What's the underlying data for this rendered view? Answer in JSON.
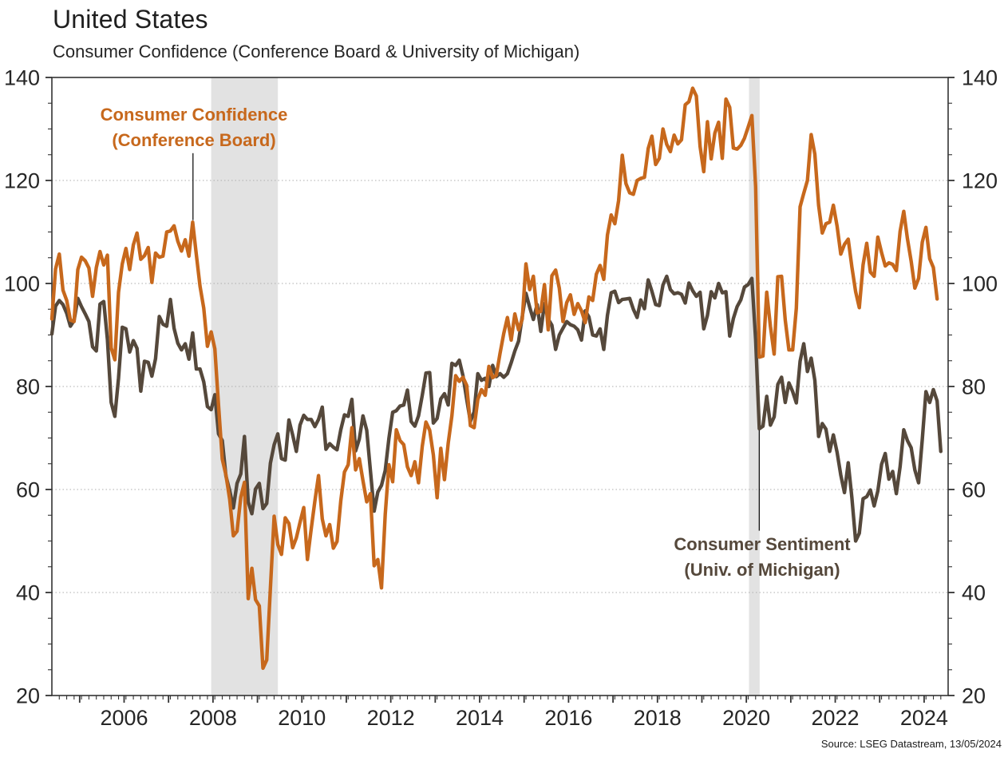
{
  "header": {
    "title": "United States",
    "subtitle": "Consumer Confidence (Conference Board & University of Michigan)"
  },
  "source": "Source: LSEG Datastream, 13/05/2024",
  "annotations": {
    "conference_board": {
      "line1": "Consumer Confidence",
      "line2": "(Conference Board)",
      "color": "#C7681C"
    },
    "michigan": {
      "line1": "Consumer Sentiment",
      "line2": "(Univ. of Michigan)",
      "color": "#55483B"
    }
  },
  "chart_data": {
    "type": "line",
    "title": "United States",
    "subtitle": "Consumer Confidence (Conference Board & University of Michigan)",
    "x_start": "2004-05",
    "interval": "monthly",
    "x_range_years": [
      2004.375,
      2024.54
    ],
    "ylim": [
      20,
      140
    ],
    "grid": "dotted horizontal at 40,60,80,100,120",
    "grid_values": [
      40,
      60,
      80,
      100,
      120
    ],
    "y_axis": {
      "major_ticks": [
        20,
        40,
        60,
        80,
        100,
        120,
        140
      ],
      "minor_step": 5,
      "labels_both_sides": true
    },
    "x_axis": {
      "labeled_years": [
        2006,
        2008,
        2010,
        2012,
        2014,
        2016,
        2018,
        2020,
        2022,
        2024
      ],
      "year_tick_start": 2005,
      "year_tick_end": 2024,
      "minor_tick_months": 2
    },
    "shaded_bands": [
      {
        "name": "recession-2008-09",
        "from": 2007.96,
        "to": 2009.46,
        "color": "#E2E2E2"
      },
      {
        "name": "covid-2020",
        "from": 2020.06,
        "to": 2020.3,
        "color": "#E2E2E2"
      }
    ],
    "callouts": [
      {
        "series": "conference_board",
        "x_year": 2007.55,
        "value_from": 125.3,
        "value_to": 112.3
      },
      {
        "series": "michigan",
        "x_year": 2020.29,
        "value_from": 71.5,
        "value_to": 52.0
      }
    ],
    "series": [
      {
        "name": "Consumer Confidence (Conference Board)",
        "color": "#C7681C",
        "values": [
          93.1,
          102.8,
          105.7,
          98.7,
          96.7,
          92.9,
          92.6,
          102.7,
          105.1,
          104.4,
          103.0,
          97.5,
          103.1,
          106.2,
          103.6,
          105.5,
          87.5,
          85.2,
          98.3,
          103.8,
          106.8,
          102.7,
          107.5,
          109.8,
          104.7,
          105.4,
          107.0,
          100.2,
          105.9,
          105.1,
          105.3,
          110.0,
          110.2,
          111.2,
          108.2,
          106.3,
          108.5,
          105.3,
          111.9,
          105.6,
          99.5,
          95.2,
          87.8,
          90.6,
          87.3,
          76.4,
          65.9,
          62.8,
          58.1,
          51.0,
          51.9,
          58.5,
          61.4,
          38.8,
          44.7,
          38.6,
          37.4,
          25.3,
          26.9,
          40.8,
          54.8,
          49.3,
          47.4,
          54.5,
          53.4,
          48.7,
          50.6,
          53.6,
          56.5,
          46.4,
          52.3,
          57.7,
          62.7,
          54.3,
          51.0,
          53.2,
          48.6,
          49.9,
          57.8,
          63.4,
          64.8,
          72.0,
          63.8,
          66.0,
          61.7,
          57.6,
          59.2,
          45.2,
          46.4,
          40.9,
          55.2,
          64.8,
          61.5,
          71.6,
          69.5,
          68.7,
          64.4,
          62.7,
          65.4,
          61.3,
          68.4,
          73.1,
          71.5,
          66.7,
          58.4,
          68.0,
          61.9,
          69.0,
          74.3,
          82.1,
          81.0,
          81.8,
          80.2,
          72.4,
          72.0,
          77.5,
          79.4,
          78.3,
          83.9,
          81.7,
          82.2,
          86.4,
          90.3,
          93.4,
          89.0,
          94.1,
          91.0,
          93.1,
          103.8,
          98.8,
          101.4,
          94.3,
          94.6,
          99.8,
          91.0,
          101.5,
          102.6,
          99.1,
          92.6,
          96.3,
          97.8,
          94.0,
          96.1,
          94.7,
          92.4,
          97.4,
          96.7,
          101.8,
          103.5,
          100.8,
          109.4,
          113.3,
          111.6,
          116.1,
          124.9,
          119.4,
          117.6,
          117.3,
          120.0,
          120.4,
          120.6,
          126.2,
          128.6,
          123.1,
          124.3,
          130.0,
          127.0,
          125.6,
          128.8,
          127.1,
          127.9,
          134.7,
          135.3,
          137.9,
          136.4,
          126.6,
          121.7,
          131.4,
          124.2,
          129.2,
          131.3,
          124.3,
          135.8,
          134.2,
          126.3,
          126.1,
          126.8,
          128.2,
          130.4,
          132.6,
          118.8,
          85.7,
          85.9,
          98.3,
          91.7,
          86.3,
          101.3,
          101.4,
          92.9,
          87.1,
          87.1,
          95.2,
          114.9,
          117.5,
          120.0,
          128.9,
          125.1,
          115.2,
          109.8,
          111.6,
          111.9,
          115.2,
          111.1,
          105.7,
          107.6,
          108.6,
          103.2,
          98.4,
          95.3,
          103.6,
          107.8,
          102.2,
          101.4,
          109.0,
          106.0,
          103.4,
          104.0,
          103.7,
          102.5,
          110.1,
          114.0,
          108.7,
          104.3,
          99.1,
          101.0,
          108.0,
          110.9,
          104.8,
          103.1,
          97.0
        ]
      },
      {
        "name": "Consumer Sentiment (Univ. of Michigan)",
        "color": "#55483B",
        "values": [
          90.2,
          95.6,
          96.7,
          95.9,
          94.2,
          91.7,
          92.8,
          97.1,
          95.5,
          94.1,
          92.6,
          87.7,
          86.9,
          96.0,
          96.5,
          89.1,
          76.9,
          74.2,
          81.6,
          91.5,
          91.2,
          86.7,
          88.9,
          87.4,
          79.1,
          84.9,
          84.7,
          82.0,
          85.4,
          93.6,
          92.1,
          91.7,
          96.9,
          91.3,
          88.4,
          87.1,
          88.3,
          85.3,
          90.4,
          83.4,
          83.4,
          80.9,
          76.1,
          75.5,
          78.4,
          70.8,
          69.5,
          62.6,
          59.8,
          56.4,
          61.2,
          63.0,
          70.3,
          57.6,
          55.3,
          60.1,
          61.2,
          56.3,
          57.3,
          65.1,
          68.7,
          70.8,
          66.0,
          65.7,
          73.5,
          70.6,
          67.4,
          72.5,
          74.4,
          73.6,
          73.6,
          72.2,
          73.6,
          76.0,
          67.8,
          68.9,
          68.2,
          67.7,
          71.6,
          74.5,
          74.2,
          77.5,
          67.5,
          69.8,
          74.3,
          71.5,
          63.7,
          55.8,
          59.5,
          60.8,
          63.7,
          69.9,
          75.0,
          75.3,
          76.2,
          76.4,
          79.3,
          73.2,
          72.3,
          74.3,
          78.3,
          82.6,
          82.7,
          72.9,
          73.8,
          77.6,
          78.6,
          76.4,
          84.5,
          84.1,
          85.1,
          82.1,
          77.5,
          73.2,
          75.1,
          82.5,
          81.2,
          81.6,
          80.0,
          84.1,
          81.9,
          82.5,
          81.8,
          82.5,
          84.6,
          86.9,
          88.8,
          93.6,
          98.1,
          95.4,
          93.0,
          95.9,
          90.7,
          96.1,
          93.1,
          91.9,
          87.2,
          90.0,
          91.3,
          92.6,
          92.0,
          91.7,
          91.0,
          89.0,
          94.7,
          93.5,
          90.0,
          89.8,
          91.2,
          87.2,
          93.8,
          98.2,
          98.5,
          96.3,
          96.9,
          97.0,
          97.1,
          95.0,
          93.4,
          96.8,
          95.1,
          100.7,
          98.5,
          95.9,
          95.7,
          99.7,
          101.4,
          98.8,
          98.0,
          98.2,
          97.9,
          96.2,
          100.1,
          98.6,
          97.5,
          98.3,
          91.2,
          93.8,
          98.4,
          97.2,
          100.0,
          98.2,
          98.4,
          89.8,
          93.2,
          95.5,
          96.8,
          99.3,
          99.8,
          101.0,
          89.1,
          71.8,
          72.3,
          78.1,
          72.5,
          74.1,
          80.4,
          81.8,
          76.9,
          80.7,
          79.0,
          76.8,
          84.9,
          88.3,
          82.9,
          85.5,
          81.2,
          70.3,
          72.8,
          71.7,
          67.4,
          70.6,
          67.2,
          62.8,
          59.4,
          65.2,
          58.4,
          50.0,
          51.5,
          58.2,
          58.6,
          59.9,
          56.8,
          59.7,
          64.9,
          67.0,
          62.0,
          63.5,
          59.2,
          64.4,
          71.6,
          69.5,
          68.1,
          63.8,
          61.3,
          69.7,
          79.0,
          76.9,
          79.4,
          77.2,
          67.4
        ]
      }
    ],
    "legend_position": "annotations inside plot",
    "axis_color": "#333333",
    "gridline_color": "#ADADAD"
  }
}
